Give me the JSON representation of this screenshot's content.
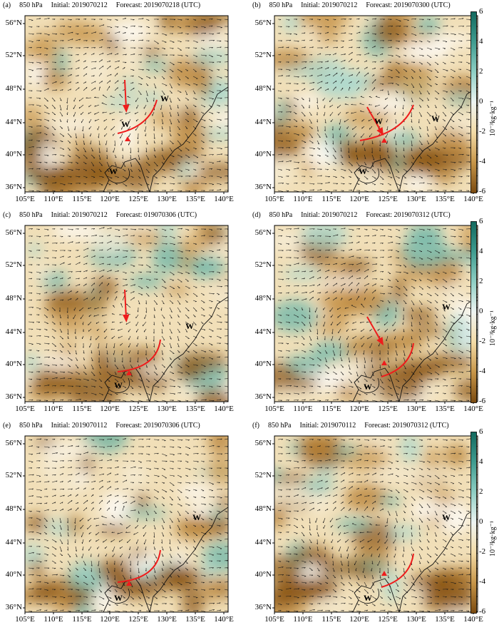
{
  "figure": {
    "panels": [
      {
        "letter": "(a)",
        "level": "850 hPa",
        "initial": "Initial: 2019070212",
        "forecast": "Forecast: 2019070218 (UTC)",
        "has_colorbar": false,
        "arrow_dir": "s",
        "has_front": true,
        "front_variant": 0
      },
      {
        "letter": "(b)",
        "level": "850 hPa",
        "initial": "Initial: 2019070212",
        "forecast": "Forecast: 2019070300 (UTC)",
        "has_colorbar": true,
        "arrow_dir": "se",
        "has_front": true,
        "front_variant": 1
      },
      {
        "letter": "(c)",
        "level": "850 hPa",
        "initial": "Initial: 2019070212",
        "forecast": "Forecast: 019070306 (UTC)",
        "has_colorbar": false,
        "arrow_dir": "s",
        "has_front": true,
        "front_variant": 2
      },
      {
        "letter": "(d)",
        "level": "850 hPa",
        "initial": "Initial: 2019070212",
        "forecast": "Forecast: 2019070312 (UTC)",
        "has_colorbar": true,
        "arrow_dir": "se",
        "has_front": true,
        "front_variant": 3
      },
      {
        "letter": "(e)",
        "level": "850 hPa",
        "initial": "Initial: 2019070112",
        "forecast": "Forecast: 2019070306 (UTC)",
        "has_colorbar": false,
        "arrow_dir": "",
        "has_front": true,
        "front_variant": 2
      },
      {
        "letter": "(f)",
        "level": "850 hPa",
        "initial": "Initial: 2019070112",
        "forecast": "Forecast: 2019070312 (UTC)",
        "has_colorbar": true,
        "arrow_dir": "",
        "has_front": true,
        "front_variant": 3
      }
    ],
    "lat_labels": [
      "56°N",
      "52°N",
      "48°N",
      "44°N",
      "40°N",
      "36°N"
    ],
    "lon_labels": [
      "105°E",
      "110°E",
      "115°E",
      "120°E",
      "125°E",
      "130°E",
      "135°E",
      "140°E"
    ],
    "warm_marker": "W",
    "colorbar": {
      "ticks": [
        "6",
        "4",
        "2",
        "0",
        "-2",
        "-4",
        "-6"
      ],
      "unit": "10⁻³kg·kg⁻¹",
      "colors": [
        "#12695e",
        "#3f9c8f",
        "#8fcfc4",
        "#eef4f2",
        "#f3dba6",
        "#c69548",
        "#7a4a10"
      ]
    },
    "colors": {
      "front": "#ee1c1c",
      "land_border": "#111111",
      "arrow": "#111111"
    }
  }
}
